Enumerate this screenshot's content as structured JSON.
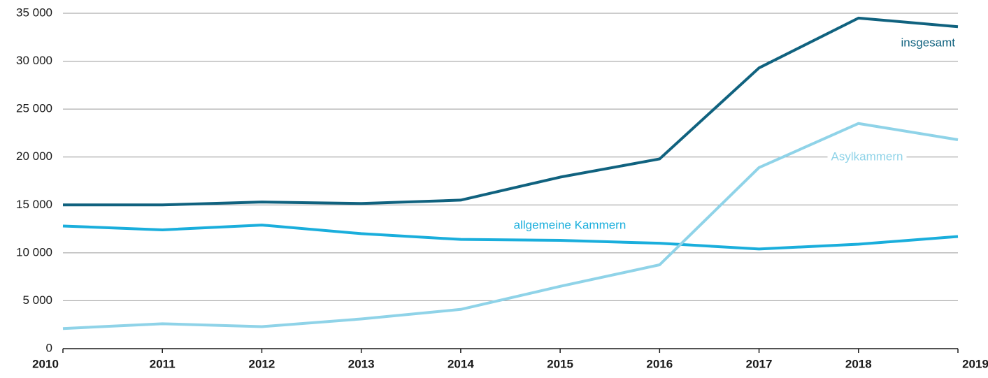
{
  "chart_data": {
    "type": "line",
    "categories": [
      "2010",
      "2011",
      "2012",
      "2013",
      "2014",
      "2015",
      "2016",
      "2017",
      "2018",
      "2019"
    ],
    "series": [
      {
        "name": "insgesamt",
        "color": "#10627f",
        "values": [
          15000,
          15000,
          15300,
          15150,
          15500,
          17900,
          19800,
          29300,
          34500,
          33600
        ]
      },
      {
        "name": "allgemeine Kammern",
        "color": "#1aaedc",
        "values": [
          12800,
          12400,
          12900,
          12000,
          11400,
          11300,
          11000,
          10400,
          10900,
          11700
        ]
      },
      {
        "name": "Asylkammern",
        "color": "#8fd3e8",
        "values": [
          2100,
          2600,
          2300,
          3100,
          4100,
          6500,
          8750,
          18900,
          23500,
          21800
        ]
      }
    ],
    "ylim": [
      0,
      35000
    ],
    "yticks": [
      0,
      {
        "value": 5000,
        "label": "5 000"
      },
      {
        "value": 10000,
        "label": "10 000"
      },
      {
        "value": 15000,
        "label": "15 000"
      },
      {
        "value": 20000,
        "label": "20 000"
      },
      {
        "value": 25000,
        "label": "25 000"
      },
      {
        "value": 30000,
        "label": "30 000"
      },
      {
        "value": 35000,
        "label": "35 000"
      }
    ],
    "grid": true
  }
}
